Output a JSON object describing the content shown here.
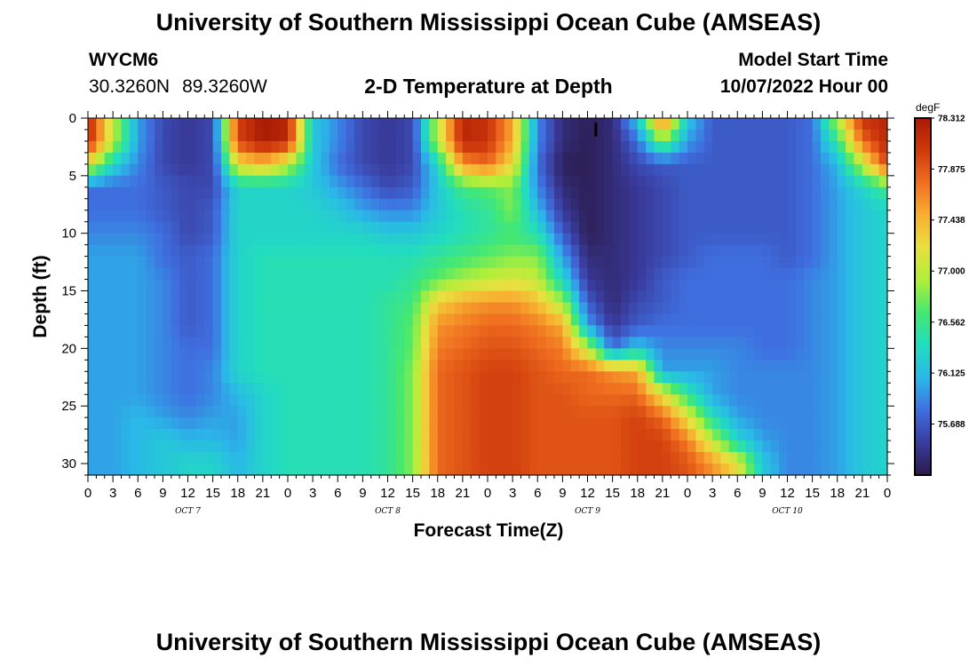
{
  "header": {
    "title": "University of Southern Mississippi Ocean Cube (AMSEAS)",
    "station_id": "WYCM6",
    "latitude": "30.3260N",
    "longitude": "89.3260W",
    "subtitle": "2-D Temperature at Depth",
    "model_start_label": "Model Start Time",
    "model_start_value": "10/07/2022 Hour 00"
  },
  "footer": {
    "title": "University of Southern Mississippi Ocean Cube (AMSEAS)"
  },
  "colors": {
    "palette": [
      "#2b1a4a",
      "#3a3c9e",
      "#3f6fe0",
      "#2ab8e8",
      "#22dcc0",
      "#45e870",
      "#b0ee3a",
      "#e8e040",
      "#f8b030",
      "#f07020",
      "#cf3a0c",
      "#a81a05"
    ]
  },
  "chart_data": {
    "type": "heatmap",
    "title": "2-D Temperature at Depth",
    "xlabel": "Forecast Time(Z)",
    "ylabel": "Depth (ft)",
    "xlim": [
      0,
      96
    ],
    "ylim": [
      0,
      31
    ],
    "x_ticks": [
      {
        "hour": 0,
        "label": "0"
      },
      {
        "hour": 3,
        "label": "3"
      },
      {
        "hour": 6,
        "label": "6"
      },
      {
        "hour": 9,
        "label": "9"
      },
      {
        "hour": 12,
        "label": "12"
      },
      {
        "hour": 15,
        "label": "15"
      },
      {
        "hour": 18,
        "label": "18"
      },
      {
        "hour": 21,
        "label": "21"
      },
      {
        "hour": 24,
        "label": "0"
      },
      {
        "hour": 27,
        "label": "3"
      },
      {
        "hour": 30,
        "label": "6"
      },
      {
        "hour": 33,
        "label": "9"
      },
      {
        "hour": 36,
        "label": "12"
      },
      {
        "hour": 39,
        "label": "15"
      },
      {
        "hour": 42,
        "label": "18"
      },
      {
        "hour": 45,
        "label": "21"
      },
      {
        "hour": 48,
        "label": "0"
      },
      {
        "hour": 51,
        "label": "3"
      },
      {
        "hour": 54,
        "label": "6"
      },
      {
        "hour": 57,
        "label": "9"
      },
      {
        "hour": 60,
        "label": "12"
      },
      {
        "hour": 63,
        "label": "15"
      },
      {
        "hour": 66,
        "label": "18"
      },
      {
        "hour": 69,
        "label": "21"
      },
      {
        "hour": 72,
        "label": "0"
      },
      {
        "hour": 75,
        "label": "3"
      },
      {
        "hour": 78,
        "label": "6"
      },
      {
        "hour": 81,
        "label": "9"
      },
      {
        "hour": 84,
        "label": "12"
      },
      {
        "hour": 87,
        "label": "15"
      },
      {
        "hour": 90,
        "label": "18"
      },
      {
        "hour": 93,
        "label": "21"
      },
      {
        "hour": 96,
        "label": "0"
      }
    ],
    "day_labels": [
      {
        "hour": 12,
        "label": "OCT 7"
      },
      {
        "hour": 36,
        "label": "OCT 8"
      },
      {
        "hour": 60,
        "label": "OCT 9"
      },
      {
        "hour": 84,
        "label": "OCT 10"
      }
    ],
    "y_ticks": [
      0,
      5,
      10,
      15,
      20,
      25,
      30
    ],
    "marker": {
      "hour": 61,
      "depth": 1
    },
    "colorbar": {
      "unit": "degF",
      "min": 75.25,
      "max": 78.312,
      "tick_labels": [
        "78.312",
        "77.875",
        "77.438",
        "77.000",
        "76.562",
        "76.125",
        "75.688"
      ]
    },
    "grid": {
      "x_hours": [
        0,
        3,
        6,
        9,
        12,
        15,
        18,
        21,
        24,
        27,
        30,
        33,
        36,
        39,
        42,
        45,
        48,
        51,
        54,
        57,
        60,
        63,
        66,
        69,
        72,
        75,
        78,
        81,
        84,
        87,
        90,
        93,
        96
      ],
      "depths_ft": [
        0,
        2,
        4,
        6,
        8,
        10,
        12,
        14,
        16,
        18,
        20,
        22,
        24,
        26,
        28,
        30
      ],
      "values_degF": [
        [
          78.2,
          77.0,
          76.0,
          75.6,
          75.5,
          75.6,
          78.0,
          78.3,
          78.2,
          76.2,
          75.9,
          75.6,
          75.5,
          75.6,
          77.0,
          78.2,
          78.1,
          77.5,
          75.9,
          75.4,
          75.3,
          75.4,
          76.2,
          77.9,
          76.2,
          75.7,
          75.7,
          75.7,
          75.7,
          75.8,
          77.0,
          78.1,
          78.2
        ],
        [
          78.2,
          77.0,
          76.0,
          75.6,
          75.5,
          75.6,
          78.0,
          78.3,
          78.2,
          76.2,
          75.9,
          75.6,
          75.5,
          75.6,
          77.0,
          78.2,
          78.1,
          77.5,
          75.9,
          75.4,
          75.3,
          75.4,
          75.8,
          76.8,
          76.0,
          75.7,
          75.7,
          75.7,
          75.7,
          75.8,
          76.5,
          77.8,
          78.2
        ],
        [
          77.2,
          76.3,
          75.9,
          75.6,
          75.5,
          75.6,
          77.2,
          77.4,
          77.0,
          76.2,
          75.8,
          75.6,
          75.5,
          75.6,
          76.3,
          77.6,
          77.8,
          77.2,
          75.8,
          75.3,
          75.3,
          75.4,
          75.6,
          75.7,
          75.7,
          75.7,
          75.7,
          75.7,
          75.7,
          75.8,
          76.1,
          77.0,
          78.0
        ],
        [
          75.8,
          75.8,
          75.8,
          75.7,
          75.6,
          75.6,
          76.3,
          76.3,
          76.3,
          76.2,
          76.0,
          75.8,
          75.6,
          75.7,
          76.2,
          76.6,
          76.7,
          76.8,
          75.9,
          75.4,
          75.3,
          75.4,
          75.5,
          75.6,
          75.7,
          75.7,
          75.7,
          75.7,
          75.7,
          75.8,
          76.0,
          76.3,
          76.6
        ],
        [
          75.8,
          75.8,
          75.8,
          75.7,
          75.6,
          75.7,
          76.3,
          76.3,
          76.3,
          76.3,
          76.2,
          76.0,
          75.9,
          75.9,
          76.2,
          76.4,
          76.5,
          76.8,
          76.1,
          75.5,
          75.3,
          75.4,
          75.5,
          75.6,
          75.7,
          75.7,
          75.7,
          75.7,
          75.7,
          75.8,
          76.0,
          76.2,
          76.3
        ],
        [
          75.9,
          75.9,
          75.9,
          75.8,
          75.6,
          75.7,
          76.3,
          76.3,
          76.3,
          76.3,
          76.3,
          76.3,
          76.2,
          76.2,
          76.3,
          76.4,
          76.5,
          76.6,
          76.4,
          75.7,
          75.3,
          75.4,
          75.5,
          75.6,
          75.7,
          75.7,
          75.7,
          75.7,
          75.7,
          75.8,
          76.0,
          76.2,
          76.3
        ],
        [
          76.0,
          76.0,
          76.0,
          75.8,
          75.7,
          75.8,
          76.3,
          76.4,
          76.4,
          76.4,
          76.4,
          76.4,
          76.4,
          76.4,
          76.5,
          76.6,
          76.7,
          76.8,
          76.8,
          76.0,
          75.4,
          75.4,
          75.5,
          75.6,
          75.7,
          75.8,
          75.8,
          75.8,
          75.7,
          75.8,
          76.0,
          76.2,
          76.3
        ],
        [
          76.0,
          76.0,
          76.0,
          75.9,
          75.7,
          75.8,
          76.3,
          76.4,
          76.4,
          76.4,
          76.4,
          76.4,
          76.4,
          76.5,
          76.7,
          76.9,
          77.0,
          77.1,
          77.0,
          76.3,
          75.5,
          75.4,
          75.5,
          75.7,
          75.8,
          75.8,
          75.8,
          75.8,
          75.8,
          75.9,
          76.0,
          76.2,
          76.3
        ],
        [
          76.0,
          76.0,
          76.0,
          75.9,
          75.7,
          75.8,
          76.3,
          76.4,
          76.4,
          76.4,
          76.4,
          76.4,
          76.5,
          76.6,
          77.3,
          77.5,
          77.6,
          77.6,
          77.4,
          76.9,
          75.7,
          75.4,
          75.6,
          75.7,
          75.8,
          75.8,
          75.8,
          75.8,
          75.8,
          75.9,
          76.0,
          76.2,
          76.3
        ],
        [
          76.0,
          76.0,
          76.0,
          75.9,
          75.7,
          75.8,
          76.3,
          76.4,
          76.4,
          76.4,
          76.4,
          76.4,
          76.5,
          76.7,
          77.6,
          77.7,
          77.8,
          77.8,
          77.7,
          77.5,
          76.0,
          75.5,
          75.7,
          75.8,
          75.8,
          75.8,
          75.8,
          75.8,
          75.8,
          75.9,
          76.0,
          76.2,
          76.3
        ],
        [
          76.0,
          76.0,
          76.0,
          75.9,
          75.8,
          75.8,
          76.3,
          76.4,
          76.4,
          76.4,
          76.4,
          76.4,
          76.5,
          76.7,
          77.7,
          77.8,
          77.9,
          77.9,
          77.8,
          77.7,
          77.0,
          75.8,
          76.2,
          75.9,
          75.9,
          75.9,
          75.9,
          75.8,
          75.8,
          75.9,
          76.0,
          76.2,
          76.3
        ],
        [
          76.0,
          76.0,
          76.0,
          75.9,
          75.8,
          75.9,
          76.3,
          76.4,
          76.4,
          76.4,
          76.4,
          76.4,
          76.5,
          76.8,
          77.8,
          77.9,
          78.0,
          78.0,
          77.9,
          77.8,
          77.8,
          77.6,
          77.5,
          76.0,
          76.0,
          76.0,
          75.9,
          75.9,
          75.9,
          75.9,
          76.0,
          76.2,
          76.3
        ],
        [
          76.0,
          76.0,
          76.0,
          75.9,
          75.8,
          75.9,
          76.1,
          76.3,
          76.4,
          76.4,
          76.4,
          76.4,
          76.5,
          76.8,
          77.8,
          77.9,
          78.0,
          78.0,
          77.9,
          77.9,
          77.8,
          77.8,
          77.8,
          77.2,
          76.5,
          76.0,
          75.9,
          75.9,
          75.9,
          75.9,
          76.0,
          76.2,
          76.3
        ],
        [
          76.0,
          76.0,
          76.1,
          76.0,
          75.9,
          76.0,
          76.0,
          76.3,
          76.4,
          76.4,
          76.4,
          76.4,
          76.5,
          76.8,
          77.8,
          77.9,
          78.0,
          78.0,
          77.9,
          77.9,
          77.9,
          77.9,
          78.0,
          77.8,
          77.2,
          76.4,
          76.0,
          75.9,
          75.9,
          75.9,
          76.0,
          76.2,
          76.3
        ],
        [
          76.0,
          76.0,
          76.1,
          76.2,
          76.1,
          76.1,
          76.0,
          76.3,
          76.4,
          76.4,
          76.4,
          76.4,
          76.5,
          76.8,
          77.8,
          77.9,
          78.0,
          78.0,
          77.9,
          77.9,
          77.9,
          77.9,
          78.0,
          78.0,
          77.7,
          77.0,
          76.3,
          76.0,
          75.9,
          75.9,
          76.0,
          76.2,
          76.3
        ],
        [
          76.0,
          76.0,
          76.1,
          76.2,
          76.3,
          76.3,
          76.1,
          76.3,
          76.4,
          76.4,
          76.4,
          76.4,
          76.5,
          76.8,
          77.8,
          77.9,
          78.0,
          78.0,
          77.9,
          77.9,
          77.9,
          77.9,
          78.0,
          78.0,
          77.9,
          77.6,
          77.2,
          76.2,
          75.9,
          75.9,
          76.0,
          76.2,
          76.3
        ]
      ]
    }
  }
}
